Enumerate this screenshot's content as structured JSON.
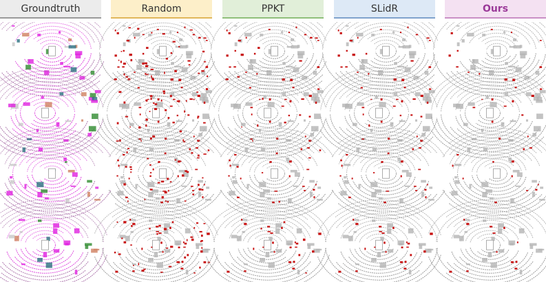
{
  "header": {
    "columns": [
      "Groundtruth",
      "Random",
      "PPKT",
      "SLidR",
      "Ours"
    ]
  }
}
